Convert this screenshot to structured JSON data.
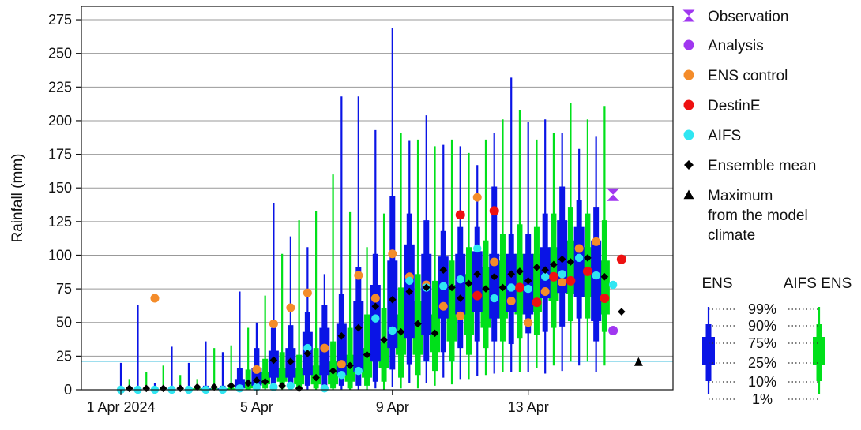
{
  "chart_data": {
    "type": "boxplot",
    "ylabel": "Rainfall (mm)",
    "ylim": [
      0,
      285
    ],
    "yticks": [
      0,
      25,
      50,
      75,
      100,
      125,
      150,
      175,
      200,
      225,
      250,
      275
    ],
    "xlim": [
      0,
      15.8
    ],
    "xticks": [
      {
        "x": 0,
        "label": "1 Apr 2024"
      },
      {
        "x": 4,
        "label": "5 Apr"
      },
      {
        "x": 8,
        "label": "9 Apr"
      },
      {
        "x": 12,
        "label": "13 Apr"
      }
    ],
    "grid": "horizontal",
    "model_climate_max": 21,
    "model_climate_max_line_color": "#7fd4e8",
    "colors": {
      "ens": "#0a14e6",
      "aifs": "#00e01a",
      "observation": "#a037f0",
      "analysis": "#a037f0",
      "ens_control": "#f48c2a",
      "destine": "#ee1111",
      "aifs_dot": "#30e6f2",
      "mean": "#000000",
      "max": "#000000"
    },
    "legend": [
      {
        "label": "Observation",
        "marker": "hourglass",
        "color": "#a037f0"
      },
      {
        "label": "Analysis",
        "marker": "circle",
        "color": "#a037f0"
      },
      {
        "label": "ENS control",
        "marker": "circle",
        "color": "#f48c2a"
      },
      {
        "label": "DestinE",
        "marker": "circle",
        "color": "#ee1111"
      },
      {
        "label": "AIFS",
        "marker": "circle",
        "color": "#30e6f2"
      },
      {
        "label": "Ensemble mean",
        "marker": "diamond",
        "color": "#000000"
      },
      {
        "label": [
          "Maximum",
          "from the model",
          "climate"
        ],
        "marker": "triangle",
        "color": "#000000"
      }
    ],
    "box_key": {
      "left_label": "ENS",
      "right_label": "AIFS ENS",
      "percentiles": [
        "99%",
        "90%",
        "75%",
        "25%",
        "10%",
        "1%"
      ]
    },
    "ens": [
      {
        "x": 0,
        "p1": 0,
        "p10": 0,
        "p25": 0,
        "p75": 0,
        "p90": 0,
        "p99": 20
      },
      {
        "x": 0.5,
        "p1": 0,
        "p10": 0,
        "p25": 0,
        "p75": 0,
        "p90": 1,
        "p99": 63
      },
      {
        "x": 1,
        "p1": 0,
        "p10": 0,
        "p25": 0,
        "p75": 0,
        "p90": 1,
        "p99": 5
      },
      {
        "x": 1.5,
        "p1": 0,
        "p10": 0,
        "p25": 0,
        "p75": 0,
        "p90": 1,
        "p99": 32
      },
      {
        "x": 2,
        "p1": 0,
        "p10": 0,
        "p25": 0,
        "p75": 0,
        "p90": 1,
        "p99": 20
      },
      {
        "x": 2.5,
        "p1": 0,
        "p10": 0,
        "p25": 0,
        "p75": 1,
        "p90": 3,
        "p99": 36
      },
      {
        "x": 3,
        "p1": 0,
        "p10": 0,
        "p25": 0,
        "p75": 1,
        "p90": 3,
        "p99": 28
      },
      {
        "x": 3.5,
        "p1": 0,
        "p10": 0,
        "p25": 1,
        "p75": 8,
        "p90": 16,
        "p99": 73
      },
      {
        "x": 4,
        "p1": 0,
        "p10": 1,
        "p25": 3,
        "p75": 16,
        "p90": 31,
        "p99": 50
      },
      {
        "x": 4.5,
        "p1": 0,
        "p10": 3,
        "p25": 9,
        "p75": 29,
        "p90": 46,
        "p99": 139
      },
      {
        "x": 5,
        "p1": 0,
        "p10": 3,
        "p25": 9,
        "p75": 31,
        "p90": 48,
        "p99": 114
      },
      {
        "x": 5.5,
        "p1": 0,
        "p10": 3,
        "p25": 11,
        "p75": 43,
        "p90": 58,
        "p99": 106
      },
      {
        "x": 6,
        "p1": 0,
        "p10": 3,
        "p25": 11,
        "p75": 46,
        "p90": 63,
        "p99": 86
      },
      {
        "x": 6.5,
        "p1": 0,
        "p10": 3,
        "p25": 11,
        "p75": 49,
        "p90": 71,
        "p99": 218
      },
      {
        "x": 7,
        "p1": 0,
        "p10": 3,
        "p25": 13,
        "p75": 66,
        "p90": 91,
        "p99": 218
      },
      {
        "x": 7.5,
        "p1": 1,
        "p10": 6,
        "p25": 21,
        "p75": 78,
        "p90": 101,
        "p99": 193
      },
      {
        "x": 8,
        "p1": 2,
        "p10": 15,
        "p25": 31,
        "p75": 96,
        "p90": 144,
        "p99": 269
      },
      {
        "x": 8.5,
        "p1": 5,
        "p10": 19,
        "p25": 38,
        "p75": 108,
        "p90": 131,
        "p99": 185
      },
      {
        "x": 9,
        "p1": 5,
        "p10": 21,
        "p25": 41,
        "p75": 101,
        "p90": 126,
        "p99": 204
      },
      {
        "x": 9.5,
        "p1": 9,
        "p10": 28,
        "p25": 53,
        "p75": 99,
        "p90": 118,
        "p99": 182
      },
      {
        "x": 10,
        "p1": 8,
        "p10": 31,
        "p25": 56,
        "p75": 101,
        "p90": 121,
        "p99": 181
      },
      {
        "x": 10.5,
        "p1": 10,
        "p10": 36,
        "p25": 58,
        "p75": 103,
        "p90": 121,
        "p99": 167
      },
      {
        "x": 11,
        "p1": 12,
        "p10": 36,
        "p25": 53,
        "p75": 101,
        "p90": 151,
        "p99": 191
      },
      {
        "x": 11.5,
        "p1": 13,
        "p10": 34,
        "p25": 58,
        "p75": 101,
        "p90": 116,
        "p99": 232
      },
      {
        "x": 12,
        "p1": 13,
        "p10": 42,
        "p25": 56,
        "p75": 101,
        "p90": 116,
        "p99": 199
      },
      {
        "x": 12.5,
        "p1": 12,
        "p10": 43,
        "p25": 68,
        "p75": 106,
        "p90": 131,
        "p99": 201
      },
      {
        "x": 13,
        "p1": 14,
        "p10": 47,
        "p25": 72,
        "p75": 126,
        "p90": 151,
        "p99": 191
      },
      {
        "x": 13.5,
        "p1": 18,
        "p10": 53,
        "p25": 69,
        "p75": 121,
        "p90": 141,
        "p99": 179
      },
      {
        "x": 14,
        "p1": 13,
        "p10": 36,
        "p25": 51,
        "p75": 111,
        "p90": 136,
        "p99": 188
      }
    ],
    "aifs_ens": [
      {
        "x": 0.25,
        "p1": 0,
        "p10": 0,
        "p25": 0,
        "p75": 0,
        "p90": 0,
        "p99": 8
      },
      {
        "x": 0.75,
        "p1": 0,
        "p10": 0,
        "p25": 0,
        "p75": 0,
        "p90": 1,
        "p99": 13
      },
      {
        "x": 1.25,
        "p1": 0,
        "p10": 0,
        "p25": 0,
        "p75": 0,
        "p90": 1,
        "p99": 18
      },
      {
        "x": 1.75,
        "p1": 0,
        "p10": 0,
        "p25": 0,
        "p75": 0,
        "p90": 1,
        "p99": 11
      },
      {
        "x": 2.25,
        "p1": 0,
        "p10": 0,
        "p25": 0,
        "p75": 1,
        "p90": 2,
        "p99": 8
      },
      {
        "x": 2.75,
        "p1": 0,
        "p10": 0,
        "p25": 0,
        "p75": 1,
        "p90": 3,
        "p99": 31
      },
      {
        "x": 3.25,
        "p1": 0,
        "p10": 0,
        "p25": 0,
        "p75": 1,
        "p90": 3,
        "p99": 33
      },
      {
        "x": 3.75,
        "p1": 0,
        "p10": 0,
        "p25": 1,
        "p75": 6,
        "p90": 15,
        "p99": 46
      },
      {
        "x": 4.25,
        "p1": 0,
        "p10": 1,
        "p25": 4,
        "p75": 13,
        "p90": 23,
        "p99": 70
      },
      {
        "x": 4.75,
        "p1": 0,
        "p10": 1,
        "p25": 6,
        "p75": 16,
        "p90": 28,
        "p99": 101
      },
      {
        "x": 5.25,
        "p1": 0,
        "p10": 1,
        "p25": 4,
        "p75": 16,
        "p90": 26,
        "p99": 126
      },
      {
        "x": 5.75,
        "p1": 0,
        "p10": 1,
        "p25": 4,
        "p75": 18,
        "p90": 31,
        "p99": 133
      },
      {
        "x": 6.25,
        "p1": 0,
        "p10": 1,
        "p25": 4,
        "p75": 21,
        "p90": 36,
        "p99": 160
      },
      {
        "x": 6.75,
        "p1": 0,
        "p10": 1,
        "p25": 6,
        "p75": 26,
        "p90": 46,
        "p99": 132
      },
      {
        "x": 7.25,
        "p1": 0,
        "p10": 3,
        "p25": 9,
        "p75": 31,
        "p90": 56,
        "p99": 106
      },
      {
        "x": 7.75,
        "p1": 0,
        "p10": 6,
        "p25": 16,
        "p75": 36,
        "p90": 61,
        "p99": 131
      },
      {
        "x": 8.25,
        "p1": 1,
        "p10": 9,
        "p25": 26,
        "p75": 56,
        "p90": 76,
        "p99": 191
      },
      {
        "x": 8.75,
        "p1": 1,
        "p10": 11,
        "p25": 26,
        "p75": 66,
        "p90": 86,
        "p99": 186
      },
      {
        "x": 9.25,
        "p1": 3,
        "p10": 14,
        "p25": 28,
        "p75": 56,
        "p90": 81,
        "p99": 181
      },
      {
        "x": 9.75,
        "p1": 4,
        "p10": 21,
        "p25": 36,
        "p75": 78,
        "p90": 96,
        "p99": 186
      },
      {
        "x": 10.25,
        "p1": 8,
        "p10": 26,
        "p25": 41,
        "p75": 86,
        "p90": 106,
        "p99": 176
      },
      {
        "x": 10.75,
        "p1": 11,
        "p10": 31,
        "p25": 46,
        "p75": 91,
        "p90": 111,
        "p99": 186
      },
      {
        "x": 11.25,
        "p1": 13,
        "p10": 36,
        "p25": 53,
        "p75": 96,
        "p90": 116,
        "p99": 201
      },
      {
        "x": 11.75,
        "p1": 13,
        "p10": 38,
        "p25": 56,
        "p75": 101,
        "p90": 123,
        "p99": 208
      },
      {
        "x": 12.25,
        "p1": 16,
        "p10": 41,
        "p25": 58,
        "p75": 101,
        "p90": 121,
        "p99": 186
      },
      {
        "x": 12.75,
        "p1": 18,
        "p10": 46,
        "p25": 66,
        "p75": 106,
        "p90": 131,
        "p99": 191
      },
      {
        "x": 13.25,
        "p1": 21,
        "p10": 51,
        "p25": 71,
        "p75": 111,
        "p90": 136,
        "p99": 213
      },
      {
        "x": 13.75,
        "p1": 21,
        "p10": 53,
        "p25": 69,
        "p75": 106,
        "p90": 131,
        "p99": 201
      },
      {
        "x": 14.25,
        "p1": 18,
        "p10": 43,
        "p25": 56,
        "p75": 96,
        "p90": 126,
        "p99": 211
      }
    ],
    "ens_control": [
      {
        "x": 1,
        "y": 68
      },
      {
        "x": 4,
        "y": 15
      },
      {
        "x": 4.5,
        "y": 49
      },
      {
        "x": 5,
        "y": 61
      },
      {
        "x": 5.5,
        "y": 72
      },
      {
        "x": 6,
        "y": 31
      },
      {
        "x": 6.5,
        "y": 19
      },
      {
        "x": 7,
        "y": 85
      },
      {
        "x": 7.5,
        "y": 68
      },
      {
        "x": 8,
        "y": 101
      },
      {
        "x": 8.5,
        "y": 84
      },
      {
        "x": 9,
        "y": 78
      },
      {
        "x": 9.5,
        "y": 62
      },
      {
        "x": 10,
        "y": 55
      },
      {
        "x": 10.5,
        "y": 143
      },
      {
        "x": 11,
        "y": 95
      },
      {
        "x": 11.5,
        "y": 66
      },
      {
        "x": 12,
        "y": 50
      },
      {
        "x": 12.5,
        "y": 73
      },
      {
        "x": 13,
        "y": 80
      },
      {
        "x": 13.5,
        "y": 105
      },
      {
        "x": 14,
        "y": 110
      }
    ],
    "destine": [
      {
        "x": 10,
        "y": 130
      },
      {
        "x": 10.5,
        "y": 70
      },
      {
        "x": 11,
        "y": 133
      },
      {
        "x": 11.75,
        "y": 76
      },
      {
        "x": 12.25,
        "y": 65
      },
      {
        "x": 12.75,
        "y": 84
      },
      {
        "x": 13.25,
        "y": 81
      },
      {
        "x": 13.75,
        "y": 88
      },
      {
        "x": 14.25,
        "y": 68
      },
      {
        "x": 14.75,
        "y": 97
      }
    ],
    "aifs": [
      {
        "x": 0,
        "y": 0
      },
      {
        "x": 0.5,
        "y": 0
      },
      {
        "x": 1,
        "y": 0
      },
      {
        "x": 1.5,
        "y": 0
      },
      {
        "x": 2,
        "y": 0
      },
      {
        "x": 2.5,
        "y": 0
      },
      {
        "x": 3,
        "y": 0
      },
      {
        "x": 3.5,
        "y": 1
      },
      {
        "x": 4,
        "y": 2
      },
      {
        "x": 4.5,
        "y": 2
      },
      {
        "x": 5,
        "y": 3
      },
      {
        "x": 5.5,
        "y": 31
      },
      {
        "x": 6,
        "y": 1
      },
      {
        "x": 6.5,
        "y": 11
      },
      {
        "x": 7,
        "y": 14
      },
      {
        "x": 7.5,
        "y": 53
      },
      {
        "x": 8,
        "y": 44
      },
      {
        "x": 8.5,
        "y": 81
      },
      {
        "x": 9,
        "y": 76
      },
      {
        "x": 9.5,
        "y": 77
      },
      {
        "x": 10,
        "y": 82
      },
      {
        "x": 10.5,
        "y": 105
      },
      {
        "x": 11,
        "y": 68
      },
      {
        "x": 11.5,
        "y": 76
      },
      {
        "x": 12,
        "y": 75
      },
      {
        "x": 12.5,
        "y": 84
      },
      {
        "x": 13,
        "y": 86
      },
      {
        "x": 13.5,
        "y": 98
      },
      {
        "x": 14,
        "y": 85
      },
      {
        "x": 14.5,
        "y": 78
      }
    ],
    "ensemble_mean": [
      {
        "x": 0.25,
        "y": 1
      },
      {
        "x": 0.75,
        "y": 1
      },
      {
        "x": 1.25,
        "y": 1
      },
      {
        "x": 1.75,
        "y": 1
      },
      {
        "x": 2.25,
        "y": 2
      },
      {
        "x": 2.75,
        "y": 2
      },
      {
        "x": 3.25,
        "y": 3
      },
      {
        "x": 3.75,
        "y": 5
      },
      {
        "x": 4,
        "y": 7
      },
      {
        "x": 4.25,
        "y": 6
      },
      {
        "x": 4.5,
        "y": 22
      },
      {
        "x": 4.75,
        "y": 3
      },
      {
        "x": 5,
        "y": 21
      },
      {
        "x": 5.25,
        "y": 1
      },
      {
        "x": 5.5,
        "y": 27
      },
      {
        "x": 5.75,
        "y": 9
      },
      {
        "x": 6.25,
        "y": 14
      },
      {
        "x": 6.5,
        "y": 40
      },
      {
        "x": 6.75,
        "y": 18
      },
      {
        "x": 7,
        "y": 46
      },
      {
        "x": 7.25,
        "y": 26
      },
      {
        "x": 7.5,
        "y": 62
      },
      {
        "x": 7.75,
        "y": 37
      },
      {
        "x": 8,
        "y": 67
      },
      {
        "x": 8.25,
        "y": 43
      },
      {
        "x": 8.5,
        "y": 73
      },
      {
        "x": 8.75,
        "y": 49
      },
      {
        "x": 9,
        "y": 76
      },
      {
        "x": 9.25,
        "y": 42
      },
      {
        "x": 9.5,
        "y": 89
      },
      {
        "x": 9.75,
        "y": 76
      },
      {
        "x": 10,
        "y": 68
      },
      {
        "x": 10.25,
        "y": 79
      },
      {
        "x": 10.5,
        "y": 86
      },
      {
        "x": 10.75,
        "y": 75
      },
      {
        "x": 11,
        "y": 84
      },
      {
        "x": 11.25,
        "y": 76
      },
      {
        "x": 11.5,
        "y": 86
      },
      {
        "x": 11.75,
        "y": 88
      },
      {
        "x": 12,
        "y": 81
      },
      {
        "x": 12.25,
        "y": 91
      },
      {
        "x": 12.5,
        "y": 89
      },
      {
        "x": 12.75,
        "y": 93
      },
      {
        "x": 13,
        "y": 97
      },
      {
        "x": 13.25,
        "y": 95
      },
      {
        "x": 13.75,
        "y": 98
      },
      {
        "x": 14.25,
        "y": 84
      },
      {
        "x": 14.75,
        "y": 58
      }
    ],
    "analysis": [
      {
        "x": 14.5,
        "y": 44
      }
    ],
    "observation": [
      {
        "x": 14.5,
        "y": 145
      }
    ],
    "model_climate_max_marker": {
      "x": 15.25,
      "y": 21
    }
  }
}
